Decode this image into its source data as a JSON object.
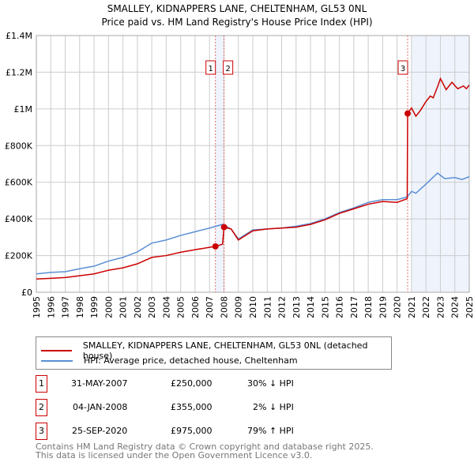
{
  "chart_data": {
    "type": "line",
    "title": "SMALLEY, KIDNAPPERS LANE, CHELTENHAM, GL53 0NL",
    "subtitle": "Price paid vs. HM Land Registry's House Price Index (HPI)",
    "xlim": [
      1995,
      2025
    ],
    "ylim": [
      0,
      1400000
    ],
    "x_ticks": [
      "1995",
      "1996",
      "1997",
      "1998",
      "1999",
      "2000",
      "2001",
      "2002",
      "2003",
      "2004",
      "2005",
      "2006",
      "2007",
      "2008",
      "2009",
      "2010",
      "2011",
      "2012",
      "2013",
      "2014",
      "2015",
      "2016",
      "2017",
      "2018",
      "2019",
      "2020",
      "2021",
      "2022",
      "2023",
      "2024",
      "2025"
    ],
    "y_ticks": [
      {
        "v": 0,
        "label": "£0"
      },
      {
        "v": 200000,
        "label": "£200K"
      },
      {
        "v": 400000,
        "label": "£400K"
      },
      {
        "v": 600000,
        "label": "£600K"
      },
      {
        "v": 800000,
        "label": "£800K"
      },
      {
        "v": 1000000,
        "label": "£1M"
      },
      {
        "v": 1200000,
        "label": "£1.2M"
      },
      {
        "v": 1400000,
        "label": "£1.4M"
      }
    ],
    "grid": true,
    "series": [
      {
        "name": "SMALLEY, KIDNAPPERS LANE, CHELTENHAM, GL53 0NL (detached house)",
        "color": "#cc0000",
        "x": [
          1995,
          1996,
          1997,
          1998,
          1999,
          2000,
          2001,
          2002,
          2003,
          2004,
          2005,
          2006,
          2007,
          2007.41,
          2007.9,
          2008.01,
          2008.5,
          2009,
          2010,
          2011,
          2012,
          2013,
          2014,
          2015,
          2016,
          2017,
          2018,
          2019,
          2020,
          2020.7,
          2020.73,
          2021,
          2021.3,
          2021.6,
          2022,
          2022.3,
          2022.5,
          2022.8,
          2023,
          2023.4,
          2023.8,
          2024.2,
          2024.6,
          2024.8,
          2025
        ],
        "y": [
          72000,
          76000,
          80000,
          90000,
          100000,
          120000,
          133000,
          155000,
          190000,
          200000,
          218000,
          232000,
          245000,
          250000,
          262000,
          355000,
          345000,
          285000,
          335000,
          345000,
          350000,
          355000,
          370000,
          395000,
          430000,
          455000,
          480000,
          495000,
          490000,
          510000,
          975000,
          1005000,
          960000,
          990000,
          1040000,
          1070000,
          1060000,
          1120000,
          1165000,
          1105000,
          1145000,
          1110000,
          1125000,
          1110000,
          1130000
        ]
      },
      {
        "name": "HPI: Average price, detached house, Cheltenham",
        "color": "#5b8fd4",
        "x": [
          1995,
          1996,
          1997,
          1998,
          1999,
          2000,
          2001,
          2002,
          2003,
          2004,
          2005,
          2006,
          2007,
          2007.9,
          2008.5,
          2009,
          2010,
          2011,
          2012,
          2013,
          2014,
          2015,
          2016,
          2017,
          2018,
          2019,
          2020,
          2020.7,
          2021,
          2021.3,
          2022,
          2022.8,
          2023.3,
          2024,
          2024.5,
          2025
        ],
        "y": [
          100000,
          108000,
          112000,
          128000,
          142000,
          170000,
          190000,
          220000,
          268000,
          285000,
          310000,
          330000,
          350000,
          370000,
          345000,
          290000,
          340000,
          345000,
          350000,
          360000,
          375000,
          400000,
          435000,
          460000,
          490000,
          505000,
          505000,
          520000,
          550000,
          540000,
          590000,
          650000,
          620000,
          625000,
          615000,
          630000
        ]
      }
    ],
    "sales": [
      {
        "id": "1",
        "x": 2007.41,
        "y": 250000,
        "date": "31-MAY-2007",
        "price": "£250,000",
        "hpi": "30% ↓ HPI"
      },
      {
        "id": "2",
        "x": 2008.01,
        "y": 355000,
        "date": "04-JAN-2008",
        "price": "£355,000",
        "hpi": "2% ↓ HPI"
      },
      {
        "id": "3",
        "x": 2020.73,
        "y": 975000,
        "date": "25-SEP-2020",
        "price": "£975,000",
        "hpi": "79% ↑ HPI"
      }
    ],
    "shaded": [
      [
        2007.41,
        2008.01
      ],
      [
        2021.0,
        2025
      ]
    ],
    "legend": "bottom"
  },
  "footer": {
    "line1": "Contains HM Land Registry data © Crown copyright and database right 2025.",
    "line2": "This data is licensed under the Open Government Licence v3.0."
  }
}
